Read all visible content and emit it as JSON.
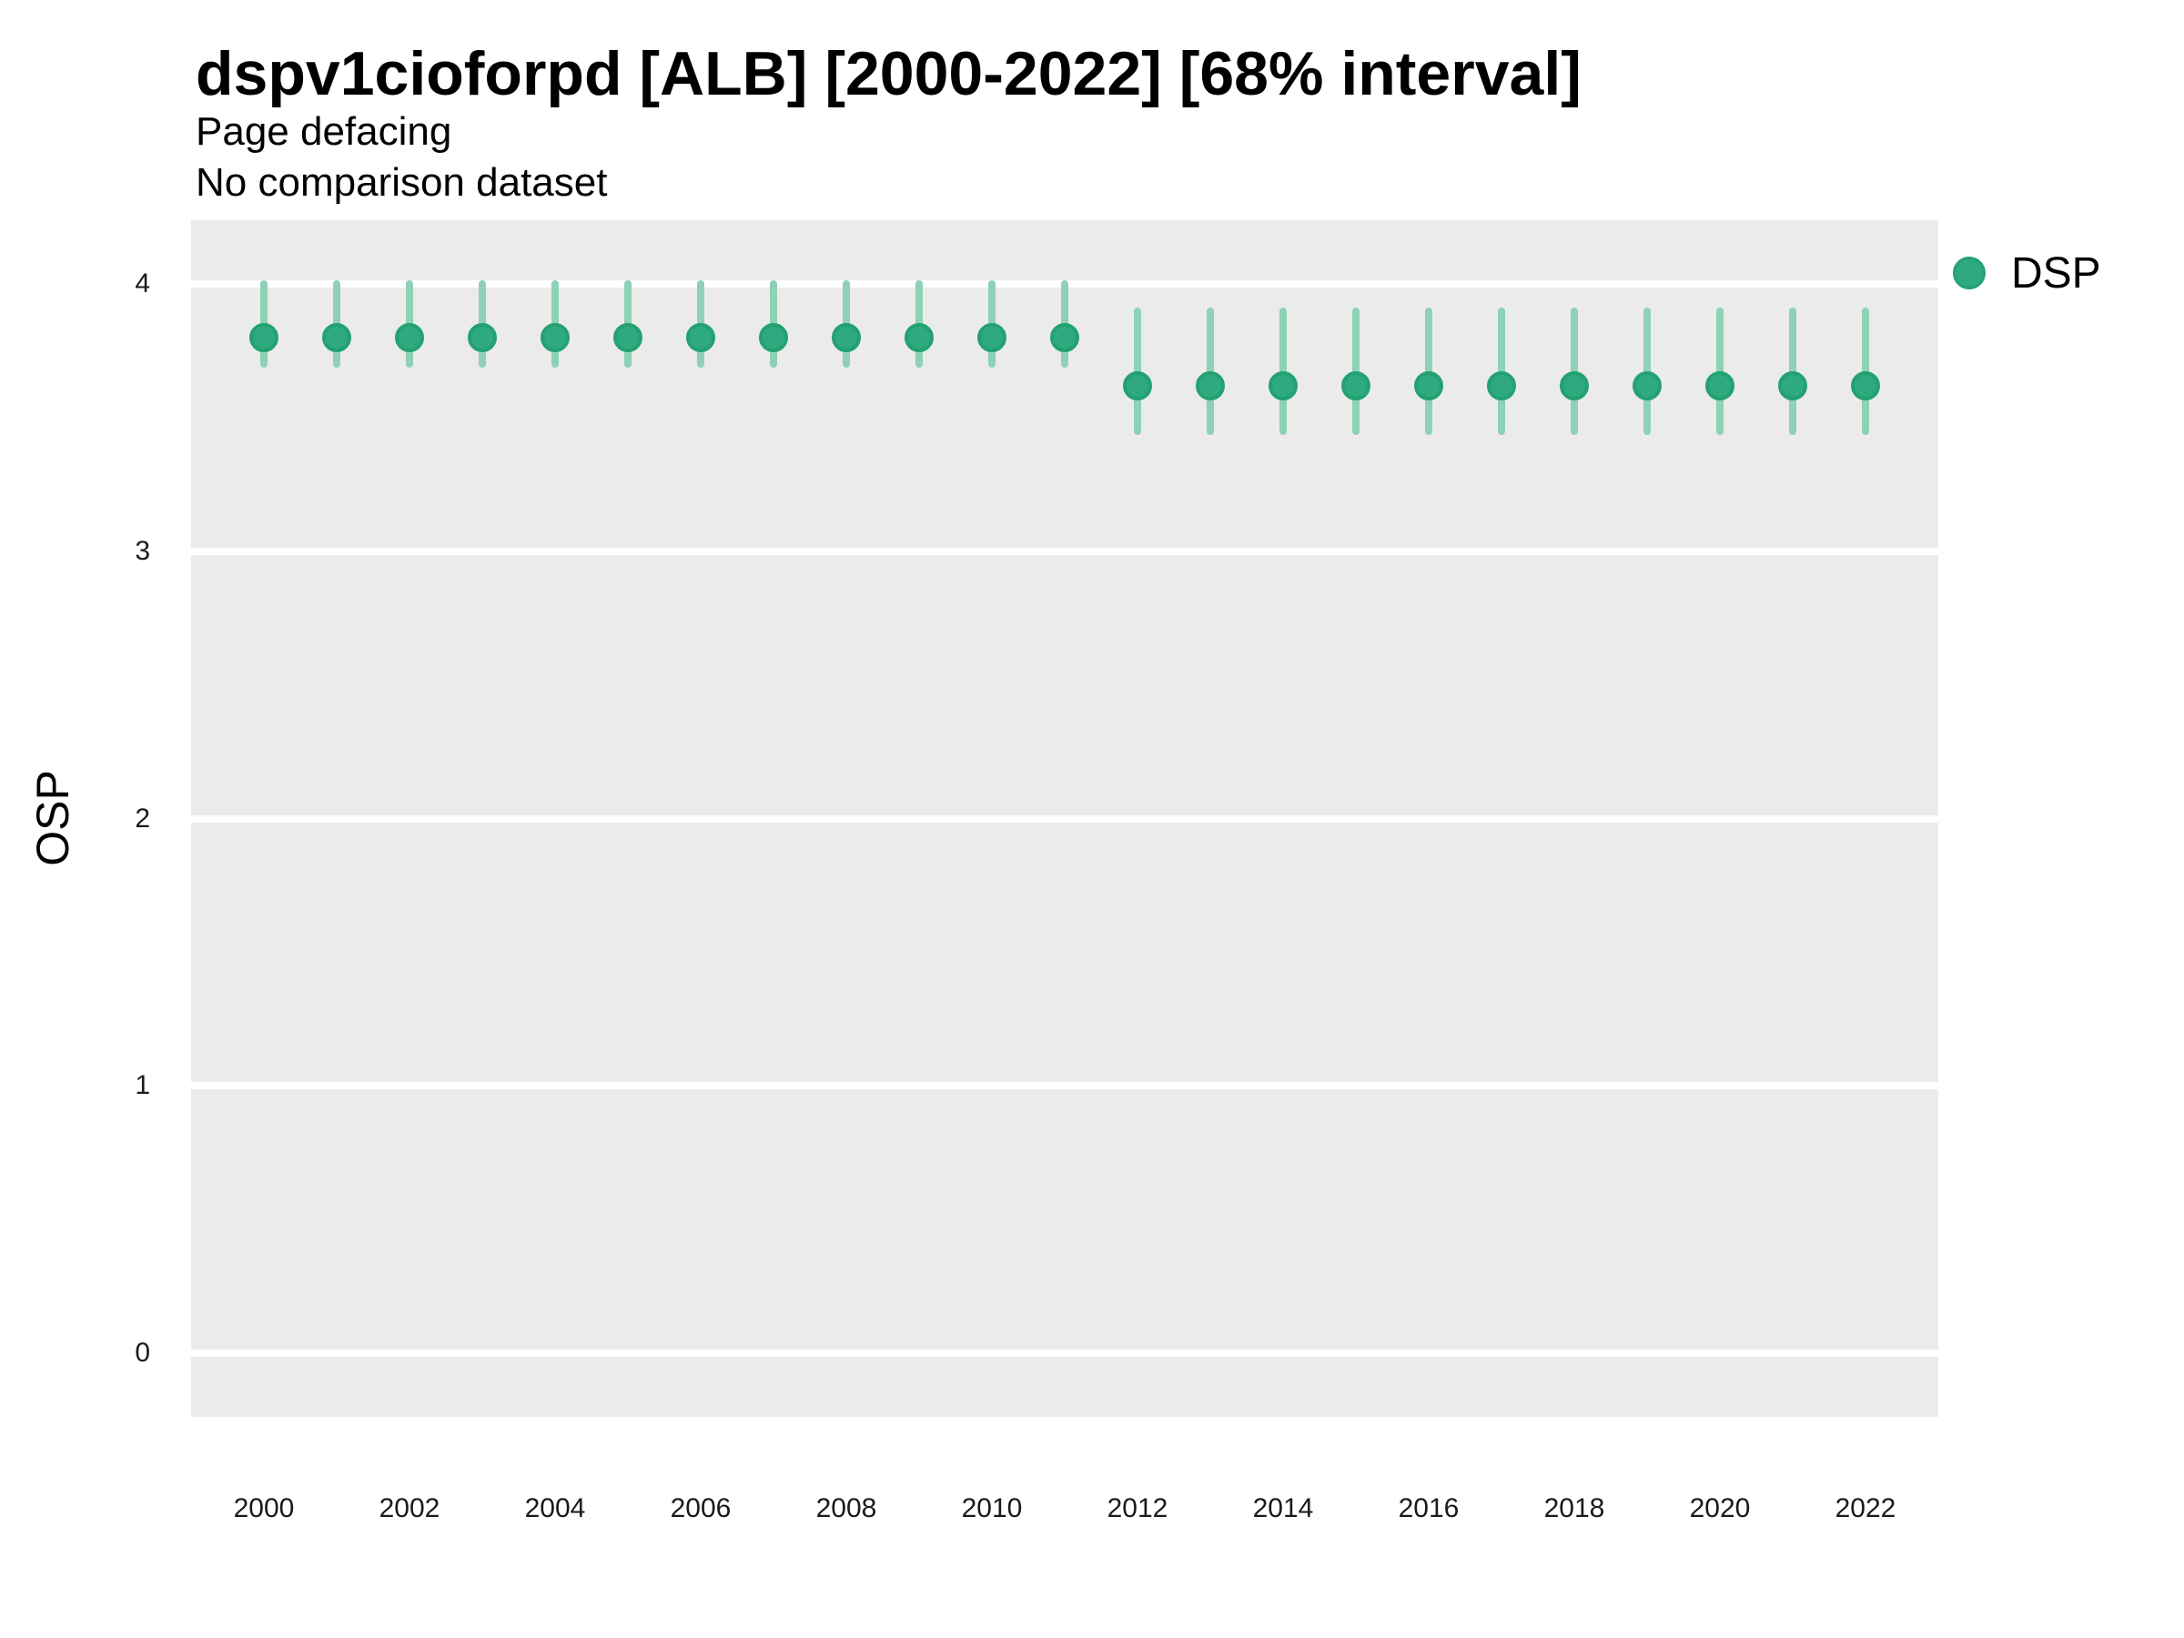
{
  "title": "dspv1cioforpd [ALB] [2000-2022] [68% interval]",
  "subtitle_line1": "Page defacing",
  "subtitle_line2": "No comparison dataset",
  "ylabel": "OSP",
  "legend": {
    "label": "DSP"
  },
  "colors": {
    "marker_fill": "#2faa7e",
    "marker_edge": "#23a173",
    "interval_bar": "#8ed1b5",
    "panel_background": "#ebebeb",
    "gridline": "#ffffff",
    "text": "#000000"
  },
  "chart_data": {
    "type": "scatter",
    "title": "dspv1cioforpd [ALB] [2000-2022] [68% interval]",
    "subtitle": "Page defacing / No comparison dataset",
    "xlabel": "",
    "ylabel": "OSP",
    "interval": "68%",
    "legend_position": "right",
    "grid": "white major gridlines on gray panel",
    "xlim": [
      1999,
      2023
    ],
    "ylim": [
      -0.24,
      4.24
    ],
    "xticks": [
      2000,
      2002,
      2004,
      2006,
      2008,
      2010,
      2012,
      2014,
      2016,
      2018,
      2020,
      2022
    ],
    "yticks": [
      0,
      1,
      2,
      3,
      4
    ],
    "x": [
      2000,
      2001,
      2002,
      2003,
      2004,
      2005,
      2006,
      2007,
      2008,
      2009,
      2010,
      2011,
      2012,
      2013,
      2014,
      2015,
      2016,
      2017,
      2018,
      2019,
      2020,
      2021,
      2022
    ],
    "series": [
      {
        "name": "DSP",
        "values": [
          3.8,
          3.8,
          3.8,
          3.8,
          3.8,
          3.8,
          3.8,
          3.8,
          3.8,
          3.8,
          3.8,
          3.8,
          3.62,
          3.62,
          3.62,
          3.62,
          3.62,
          3.62,
          3.62,
          3.62,
          3.62,
          3.62,
          3.62
        ],
        "interval_low": [
          3.7,
          3.7,
          3.7,
          3.7,
          3.7,
          3.7,
          3.7,
          3.7,
          3.7,
          3.7,
          3.7,
          3.7,
          3.45,
          3.45,
          3.45,
          3.45,
          3.45,
          3.45,
          3.45,
          3.45,
          3.45,
          3.45,
          3.45
        ],
        "interval_high": [
          4.0,
          4.0,
          4.0,
          4.0,
          4.0,
          4.0,
          4.0,
          4.0,
          4.0,
          4.0,
          4.0,
          4.0,
          3.9,
          3.9,
          3.9,
          3.9,
          3.9,
          3.9,
          3.9,
          3.9,
          3.9,
          3.9,
          3.9
        ]
      }
    ]
  }
}
